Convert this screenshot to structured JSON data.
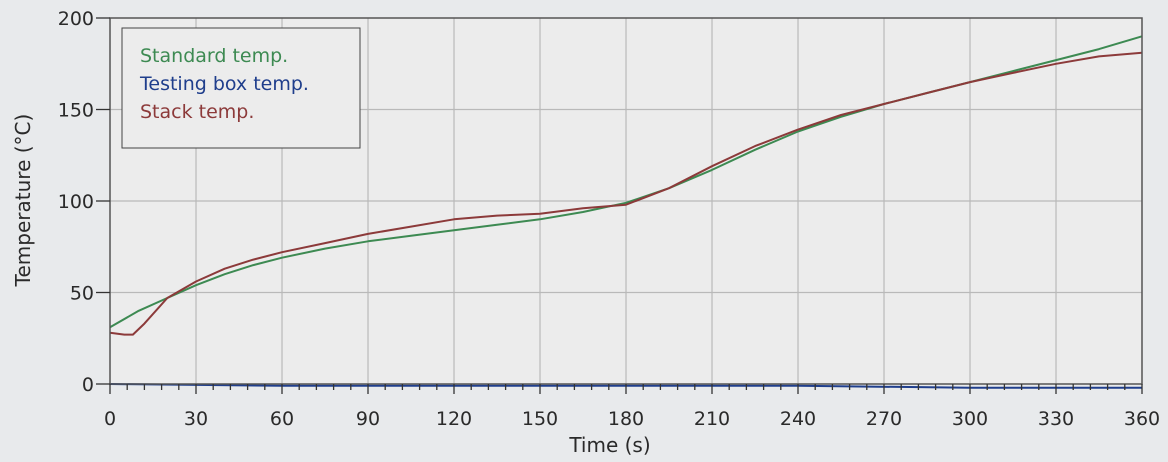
{
  "chart_data": {
    "type": "line",
    "title": "",
    "xlabel": "Time (s)",
    "ylabel": "Temperature (°C)",
    "xlim": [
      0,
      360
    ],
    "ylim": [
      0,
      200
    ],
    "x_ticks": [
      0,
      30,
      60,
      90,
      120,
      150,
      180,
      210,
      240,
      270,
      300,
      330,
      360
    ],
    "y_ticks": [
      0,
      50,
      100,
      150,
      200
    ],
    "x_tick_labels": [
      "0",
      "30",
      "60",
      "90",
      "120",
      "150",
      "180",
      "210",
      "240",
      "270",
      "300",
      "330",
      "360"
    ],
    "y_tick_labels": [
      "0",
      "50",
      "100",
      "150",
      "200"
    ],
    "grid": true,
    "legend_position": "top-left",
    "series": [
      {
        "name": "Standard temp.",
        "color": "#3d8a52",
        "x": [
          0,
          10,
          20,
          30,
          40,
          50,
          60,
          75,
          90,
          105,
          120,
          135,
          150,
          165,
          180,
          195,
          210,
          225,
          240,
          255,
          270,
          285,
          300,
          315,
          330,
          345,
          360
        ],
        "y": [
          31,
          40,
          47,
          54,
          60,
          65,
          69,
          74,
          78,
          81,
          84,
          87,
          90,
          94,
          99,
          107,
          117,
          128,
          138,
          146,
          153,
          159,
          165,
          171,
          177,
          183,
          190
        ]
      },
      {
        "name": "Testing box temp.",
        "color": "#1f3e8c",
        "x": [
          0,
          60,
          120,
          180,
          240,
          300,
          360
        ],
        "y": [
          0,
          -1,
          -1,
          -1,
          -1,
          -2,
          -2
        ]
      },
      {
        "name": "Stack temp.",
        "color": "#8c3a3a",
        "x": [
          0,
          5,
          8,
          12,
          20,
          30,
          40,
          50,
          60,
          75,
          90,
          105,
          120,
          135,
          150,
          165,
          180,
          195,
          210,
          225,
          240,
          255,
          270,
          285,
          300,
          315,
          330,
          345,
          360
        ],
        "y": [
          28,
          27,
          27,
          33,
          47,
          56,
          63,
          68,
          72,
          77,
          82,
          86,
          90,
          92,
          93,
          96,
          98,
          107,
          119,
          130,
          139,
          147,
          153,
          159,
          165,
          170,
          175,
          179,
          181
        ]
      }
    ]
  }
}
